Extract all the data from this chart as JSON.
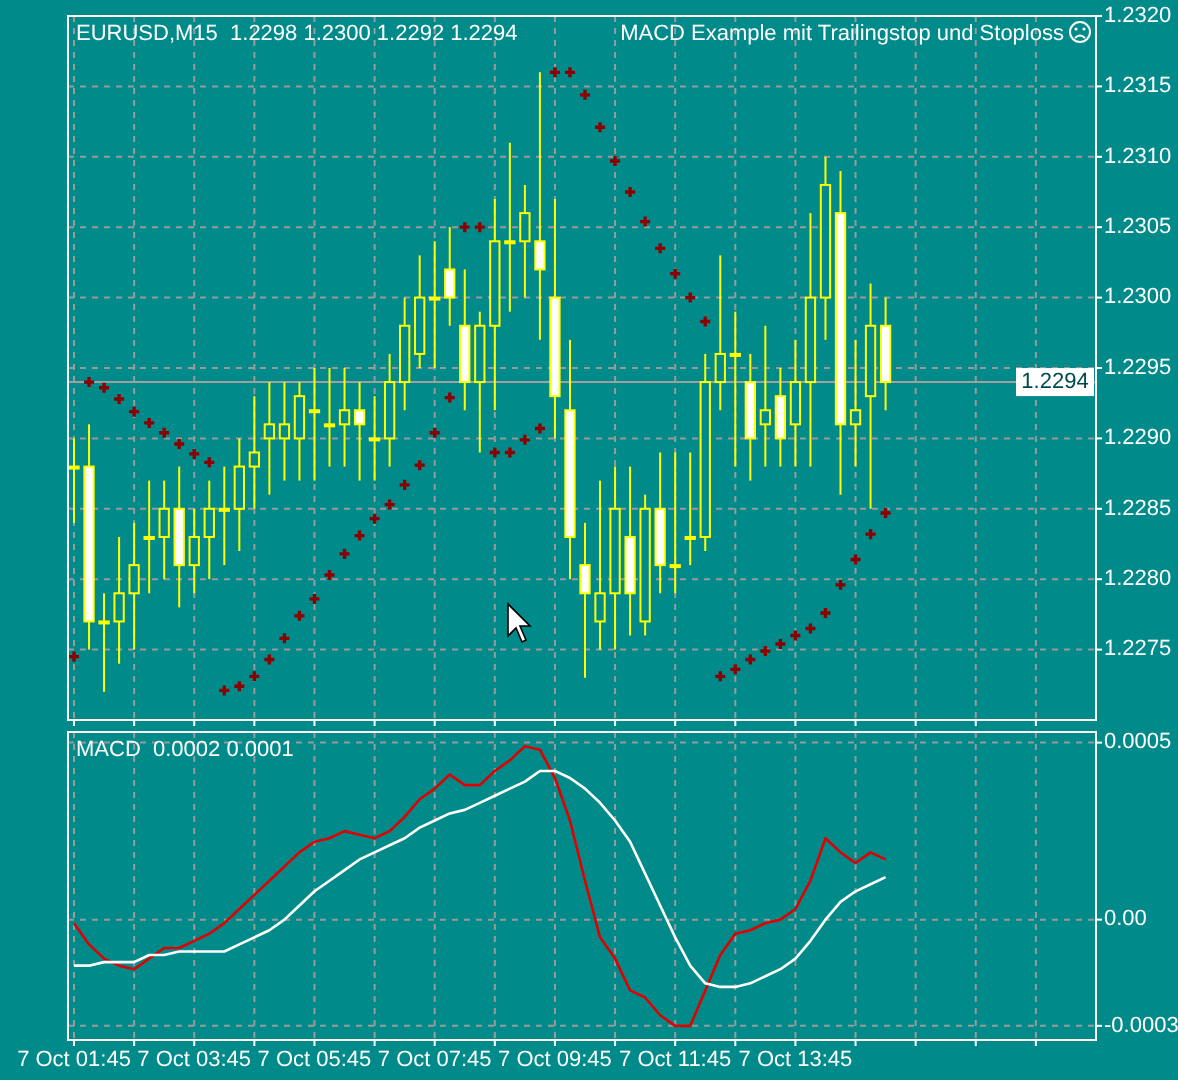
{
  "chart_data": [
    {
      "type": "candlestick",
      "title": "EURUSD,M15  1.2298 1.2300 1.2292 1.2294",
      "subtitle": "MACD Example mit Trailingstop und Stoploss",
      "color": "#ffff00",
      "categories": [
        null,
        null,
        null,
        null,
        null,
        null,
        null,
        null,
        null,
        null,
        null,
        null,
        null,
        null,
        null,
        null,
        null,
        null,
        null,
        null,
        null,
        null,
        null,
        null,
        null,
        null,
        null,
        null,
        null,
        null,
        null,
        null,
        null,
        null,
        null,
        null,
        null,
        null,
        null,
        null,
        null,
        null,
        null,
        null,
        null,
        null,
        null,
        null,
        null,
        null,
        null,
        null,
        null,
        null,
        null,
        null,
        null,
        null,
        null,
        null,
        null,
        null,
        null,
        null,
        null,
        null,
        null,
        null
      ],
      "ohlc": [
        [
          1.2288,
          1.229,
          1.2284,
          1.2288
        ],
        [
          1.2288,
          1.2291,
          1.2275,
          1.2277
        ],
        [
          1.2277,
          1.2279,
          1.2272,
          1.2277
        ],
        [
          1.2277,
          1.2283,
          1.2274,
          1.2279
        ],
        [
          1.2279,
          1.2284,
          1.2275,
          1.2281
        ],
        [
          1.2283,
          1.2287,
          1.2279,
          1.2283
        ],
        [
          1.2283,
          1.2287,
          1.228,
          1.2285
        ],
        [
          1.2285,
          1.2288,
          1.2278,
          1.2281
        ],
        [
          1.2281,
          1.2285,
          1.2279,
          1.2283
        ],
        [
          1.2283,
          1.2287,
          1.228,
          1.2285
        ],
        [
          1.2285,
          1.2288,
          1.2281,
          1.2285
        ],
        [
          1.2285,
          1.229,
          1.2282,
          1.2288
        ],
        [
          1.2288,
          1.2293,
          1.2285,
          1.2289
        ],
        [
          1.229,
          1.2294,
          1.2286,
          1.2291
        ],
        [
          1.229,
          1.2294,
          1.2287,
          1.2291
        ],
        [
          1.229,
          1.2294,
          1.2287,
          1.2293
        ],
        [
          1.2292,
          1.2295,
          1.2287,
          1.2292
        ],
        [
          1.2291,
          1.2295,
          1.2288,
          1.2291
        ],
        [
          1.2291,
          1.2295,
          1.2288,
          1.2292
        ],
        [
          1.2292,
          1.2294,
          1.2287,
          1.2291
        ],
        [
          1.229,
          1.2293,
          1.2287,
          1.229
        ],
        [
          1.229,
          1.2296,
          1.2288,
          1.2294
        ],
        [
          1.2294,
          1.23,
          1.2292,
          1.2298
        ],
        [
          1.2296,
          1.2303,
          1.2295,
          1.23
        ],
        [
          1.23,
          1.2304,
          1.2295,
          1.23
        ],
        [
          1.2302,
          1.2305,
          1.2298,
          1.23
        ],
        [
          1.2298,
          1.2302,
          1.2292,
          1.2294
        ],
        [
          1.2294,
          1.2299,
          1.2289,
          1.2298
        ],
        [
          1.2298,
          1.2307,
          1.2292,
          1.2304
        ],
        [
          1.2304,
          1.2311,
          1.2299,
          1.2304
        ],
        [
          1.2304,
          1.2308,
          1.23,
          1.2306
        ],
        [
          1.2304,
          1.2316,
          1.2297,
          1.2302
        ],
        [
          1.23,
          1.2307,
          1.229,
          1.2293
        ],
        [
          1.2292,
          1.2297,
          1.228,
          1.2283
        ],
        [
          1.2281,
          1.2284,
          1.2273,
          1.2279
        ],
        [
          1.2277,
          1.2287,
          1.2275,
          1.2279
        ],
        [
          1.2279,
          1.2288,
          1.2275,
          1.2285
        ],
        [
          1.2283,
          1.2288,
          1.2276,
          1.2279
        ],
        [
          1.2277,
          1.2286,
          1.2276,
          1.2285
        ],
        [
          1.2285,
          1.2289,
          1.2279,
          1.2281
        ],
        [
          1.2281,
          1.2289,
          1.2279,
          1.2281
        ],
        [
          1.2283,
          1.2289,
          1.2281,
          1.2283
        ],
        [
          1.2283,
          1.2296,
          1.2282,
          1.2294
        ],
        [
          1.2294,
          1.2303,
          1.2292,
          1.2296
        ],
        [
          1.2296,
          1.2299,
          1.2288,
          1.2296
        ],
        [
          1.2294,
          1.2296,
          1.2287,
          1.229
        ],
        [
          1.2291,
          1.2298,
          1.2288,
          1.2292
        ],
        [
          1.2293,
          1.2295,
          1.2288,
          1.229
        ],
        [
          1.2291,
          1.2297,
          1.2288,
          1.2294
        ],
        [
          1.2294,
          1.2306,
          1.2288,
          1.23
        ],
        [
          1.23,
          1.231,
          1.2297,
          1.2308
        ],
        [
          1.2306,
          1.2309,
          1.2286,
          1.2291
        ],
        [
          1.2291,
          1.2297,
          1.2288,
          1.2292
        ],
        [
          1.2293,
          1.2301,
          1.2285,
          1.2298
        ],
        [
          1.2298,
          1.23,
          1.2292,
          1.2294
        ],
        null,
        null,
        null,
        null,
        null,
        null,
        null,
        null,
        null,
        null,
        null,
        null,
        null
      ],
      "series": [
        {
          "type": "scatter",
          "color": "#8b0000",
          "marker": "cross",
          "values": [
            1.22745,
            1.2294,
            1.22936,
            1.22928,
            1.22919,
            1.22911,
            1.22904,
            1.22896,
            1.22889,
            1.22883,
            1.22721,
            1.22724,
            1.22731,
            1.22743,
            1.22758,
            1.22774,
            1.22786,
            1.22803,
            1.22818,
            1.22831,
            1.22843,
            1.22853,
            1.22867,
            1.22881,
            1.22904,
            1.22929,
            1.2305,
            1.2305,
            1.2289,
            1.2289,
            1.22899,
            1.22907,
            1.2316,
            1.2316,
            1.23144,
            1.23121,
            1.23097,
            1.23075,
            1.23054,
            1.23035,
            1.23017,
            1.23,
            1.22983,
            1.22731,
            1.22736,
            1.22743,
            1.22749,
            1.22754,
            1.2276,
            1.22765,
            1.22776,
            1.22796,
            1.22814,
            1.22832,
            1.22847,
            null,
            null,
            null,
            null,
            null,
            null,
            null,
            null,
            null,
            null,
            null,
            null,
            null
          ]
        }
      ],
      "ylim": [
        1.227,
        1.232
      ],
      "yticks": [
        1.2275,
        {
          "value": 1.228,
          "label": "1.2280"
        },
        1.2285,
        {
          "value": 1.229,
          "label": "1.2290"
        },
        1.2295,
        {
          "value": 1.23,
          "label": "1.2300"
        },
        1.2305,
        {
          "value": 1.231,
          "label": "1.2310"
        },
        1.2315,
        {
          "value": 1.232,
          "label": "1.2320"
        }
      ],
      "ref_lines": [
        {
          "axis": "y",
          "value": 1.2294,
          "label": "1.2294",
          "color": "#a0a0a0",
          "line_style": "solid"
        }
      ],
      "tick_labels": "y",
      "grid": true
    },
    {
      "type": "line",
      "title": "MACD  0.0002 0.0001",
      "line_style": "solid",
      "categories": [
        "7 Oct 01:45",
        null,
        null,
        null,
        null,
        null,
        null,
        null,
        "7 Oct 03:45",
        null,
        null,
        null,
        null,
        null,
        null,
        null,
        "7 Oct 05:45",
        null,
        null,
        null,
        null,
        null,
        null,
        null,
        "7 Oct 07:45",
        null,
        null,
        null,
        null,
        null,
        null,
        null,
        "7 Oct 09:45",
        null,
        null,
        null,
        null,
        null,
        null,
        null,
        "7 Oct 11:45",
        null,
        null,
        null,
        null,
        null,
        null,
        null,
        "7 Oct 13:45",
        null,
        null,
        null,
        null,
        null,
        null,
        null,
        null,
        null,
        null,
        null,
        null,
        null,
        null,
        null,
        null,
        null,
        null,
        null
      ],
      "series": [
        {
          "color": "#e00000",
          "values": [
            -1e-05,
            -7e-05,
            -0.00011,
            -0.00013,
            -0.00014,
            -0.00011,
            -8e-05,
            -8e-05,
            -6e-05,
            -4e-05,
            -1e-05,
            3e-05,
            7e-05,
            0.00011,
            0.00015,
            0.00019,
            0.00022,
            0.00023,
            0.00025,
            0.00024,
            0.00023,
            0.00025,
            0.00029,
            0.00034,
            0.00037,
            0.00041,
            0.00038,
            0.00038,
            0.00042,
            0.00045,
            0.00049,
            0.00048,
            0.0004,
            0.00028,
            0.00011,
            -5e-05,
            -0.00011,
            -0.0002,
            -0.00022,
            -0.00027,
            -0.0003,
            -0.0003,
            -0.0002,
            -0.0001,
            -4e-05,
            -3e-05,
            -1e-05,
            0,
            3e-05,
            0.00011,
            0.00023,
            0.00019,
            0.00016,
            0.00019,
            0.00017,
            null,
            null,
            null,
            null,
            null,
            null,
            null,
            null,
            null,
            null,
            null,
            null,
            null
          ]
        },
        {
          "color": "#ffffff",
          "values": [
            -0.00013,
            -0.00013,
            -0.00012,
            -0.00012,
            -0.00012,
            -0.0001,
            -0.0001,
            -9e-05,
            -9e-05,
            -9e-05,
            -9e-05,
            -7e-05,
            -5e-05,
            -3e-05,
            0,
            4e-05,
            8e-05,
            0.00011,
            0.00014,
            0.00017,
            0.00019,
            0.00021,
            0.00023,
            0.00026,
            0.00028,
            0.0003,
            0.00031,
            0.00033,
            0.00035,
            0.00037,
            0.00039,
            0.00042,
            0.00042,
            0.0004,
            0.00037,
            0.00033,
            0.00028,
            0.00022,
            0.00013,
            4e-05,
            -5e-05,
            -0.00013,
            -0.00018,
            -0.00019,
            -0.00019,
            -0.00018,
            -0.00016,
            -0.00014,
            -0.00011,
            -6e-05,
            0,
            5e-05,
            8e-05,
            0.0001,
            0.00012,
            null,
            null,
            null,
            null,
            null,
            null,
            null,
            null,
            null,
            null,
            null,
            null,
            null
          ]
        }
      ],
      "ylim": [
        -0.00034,
        0.00053
      ],
      "yticks": [
        {
          "value": -0.0003,
          "label": "-0.0003"
        },
        {
          "value": 0,
          "label": "0.00"
        },
        0.0005
      ],
      "grid": true
    }
  ]
}
